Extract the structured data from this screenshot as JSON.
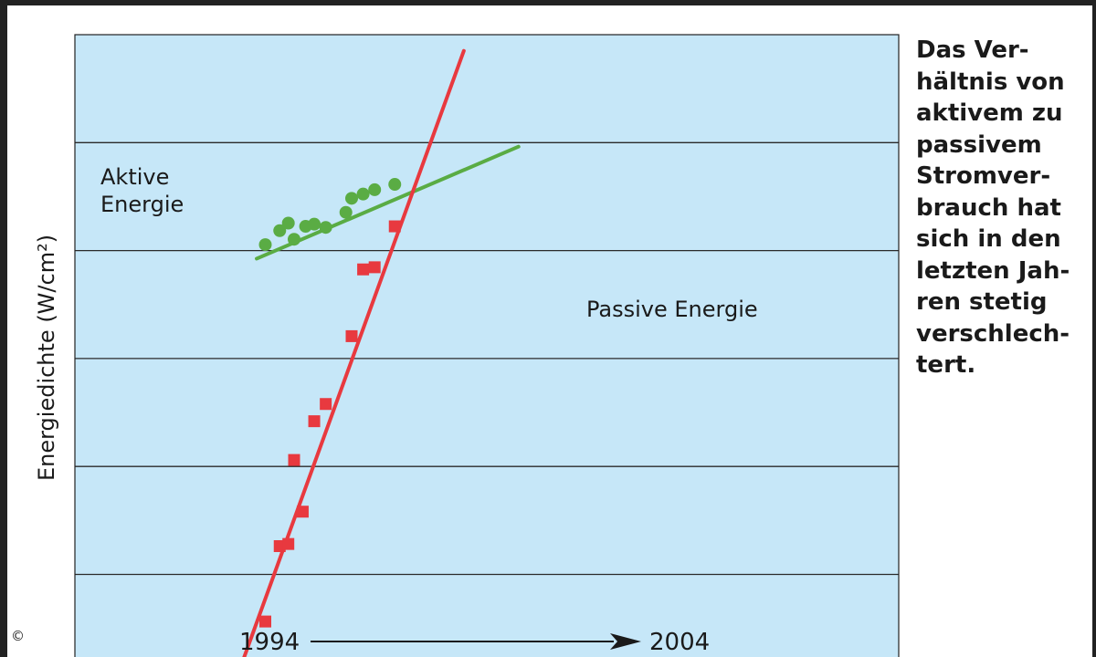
{
  "chart_data": {
    "type": "scatter",
    "ylabel": "Energiedichte (W/cm²)",
    "x_start_label": "1994",
    "x_end_label": "2004",
    "grid": "horizontal",
    "series": [
      {
        "name": "Aktive Energie",
        "color": "#5aac44",
        "marker": "circle",
        "points": [
          {
            "x": 1995,
            "y": 4.05
          },
          {
            "x": 1995.5,
            "y": 4.18
          },
          {
            "x": 1995.8,
            "y": 4.25
          },
          {
            "x": 1996,
            "y": 4.1
          },
          {
            "x": 1996.4,
            "y": 4.22
          },
          {
            "x": 1996.7,
            "y": 4.24
          },
          {
            "x": 1997.1,
            "y": 4.21
          },
          {
            "x": 1997.8,
            "y": 4.35
          },
          {
            "x": 1998,
            "y": 4.48
          },
          {
            "x": 1998.4,
            "y": 4.52
          },
          {
            "x": 1998.8,
            "y": 4.56
          },
          {
            "x": 1999.5,
            "y": 4.61
          }
        ],
        "trend": [
          {
            "x": 1994.7,
            "y": 3.92
          },
          {
            "x": 2003.8,
            "y": 4.96
          }
        ]
      },
      {
        "name": "Passive Energie",
        "color": "#e8393f",
        "marker": "square",
        "points": [
          {
            "x": 1995,
            "y": 0.55
          },
          {
            "x": 1995.5,
            "y": 1.25
          },
          {
            "x": 1995.8,
            "y": 1.27
          },
          {
            "x": 1996,
            "y": 2.05
          },
          {
            "x": 1996.3,
            "y": 1.57
          },
          {
            "x": 1996.7,
            "y": 2.41
          },
          {
            "x": 1997.1,
            "y": 2.57
          },
          {
            "x": 1998,
            "y": 3.2
          },
          {
            "x": 1998.4,
            "y": 3.82
          },
          {
            "x": 1998.8,
            "y": 3.84
          },
          {
            "x": 1999.5,
            "y": 4.22
          }
        ],
        "trend": [
          {
            "x": 1993.9,
            "y": -0.05
          },
          {
            "x": 2001.9,
            "y": 5.85
          }
        ]
      }
    ]
  }
}
